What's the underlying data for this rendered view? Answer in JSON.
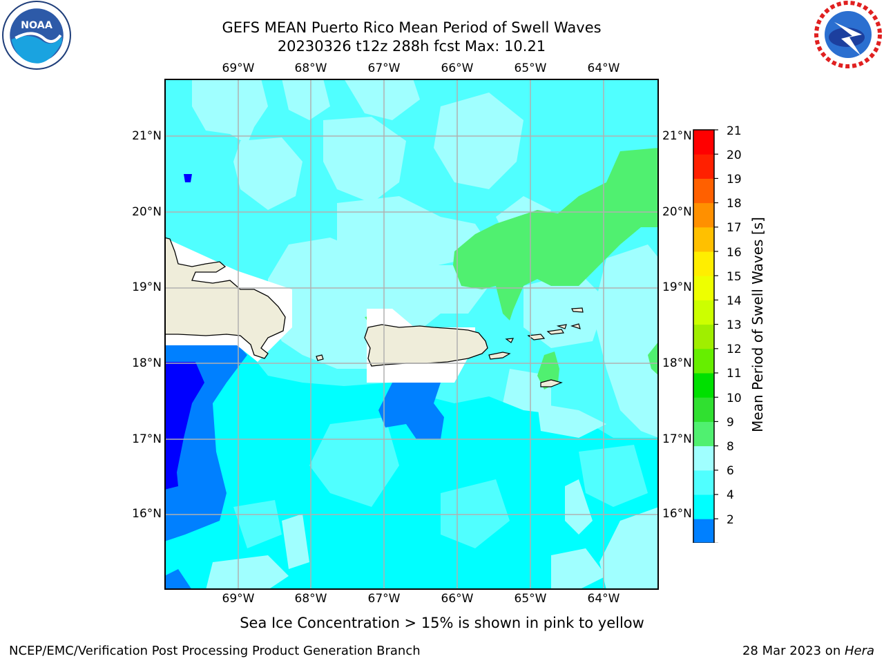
{
  "header": {
    "title_line1": "GEFS MEAN Puerto Rico Mean Period of Swell Waves",
    "title_line2": "20230326 t12z 288h fcst   Max: 10.21"
  },
  "logos": {
    "left": "noaa-logo",
    "right": "nws-logo"
  },
  "map": {
    "lon_labels": [
      "69°W",
      "68°W",
      "67°W",
      "66°W",
      "65°W",
      "64°W"
    ],
    "lat_labels": [
      "21°N",
      "20°N",
      "19°N",
      "18°N",
      "17°N",
      "16°N"
    ],
    "lon_range": [
      -70.0,
      -63.25
    ],
    "lat_range": [
      15.0,
      21.75
    ],
    "gridlines": true,
    "colors": {
      "land": "#efedda",
      "coast": "#000000",
      "grid": "#b0b0b0"
    }
  },
  "colorbar": {
    "label": "Mean Period of Swell Waves [s]",
    "ticks": [
      "2",
      "4",
      "6",
      "8",
      "9",
      "10",
      "11",
      "12",
      "13",
      "14",
      "15",
      "16",
      "17",
      "18",
      "19",
      "20",
      "21"
    ],
    "colors": [
      "#0000ff",
      "#0080ff",
      "#00ffff",
      "#50ffff",
      "#a0ffff",
      "#50f070",
      "#30e030",
      "#00e000",
      "#66ee00",
      "#a0ee00",
      "#ccff00",
      "#eeff00",
      "#ffee00",
      "#ffc000",
      "#ff9000",
      "#ff6000",
      "#ff2000",
      "#ff0000"
    ],
    "under_color": "#0000ff",
    "extend": "min"
  },
  "chart_data": {
    "type": "heatmap",
    "variable": "Mean Period of Swell Waves [s]",
    "max_value": 10.21,
    "regions": [
      {
        "level": "<2",
        "approx_area": "far west edge near 69.5°W, 16.5–18°N"
      },
      {
        "level": "2-4",
        "approx_area": "west of Mona Passage, south of Hispaniola; south of Puerto Rico near 66.5°W 17.5°N"
      },
      {
        "level": "4-6",
        "approx_area": "southern Caribbean, 15–17°N"
      },
      {
        "level": "6-8",
        "approx_area": "most of domain"
      },
      {
        "level": "8-9",
        "approx_area": "central band around Puerto Rico and north"
      },
      {
        "level": "9-10",
        "approx_area": "northeast near 63.5–65.5°W, 18.5–20.5°N; south of Virgin Islands"
      }
    ]
  },
  "footer": {
    "note": "Sea Ice Concentration > 15% is shown in pink to yellow",
    "left": "NCEP/EMC/Verification Post Processing Product Generation Branch",
    "right_date": "28 Mar 2023 on ",
    "right_host": "Hera"
  }
}
